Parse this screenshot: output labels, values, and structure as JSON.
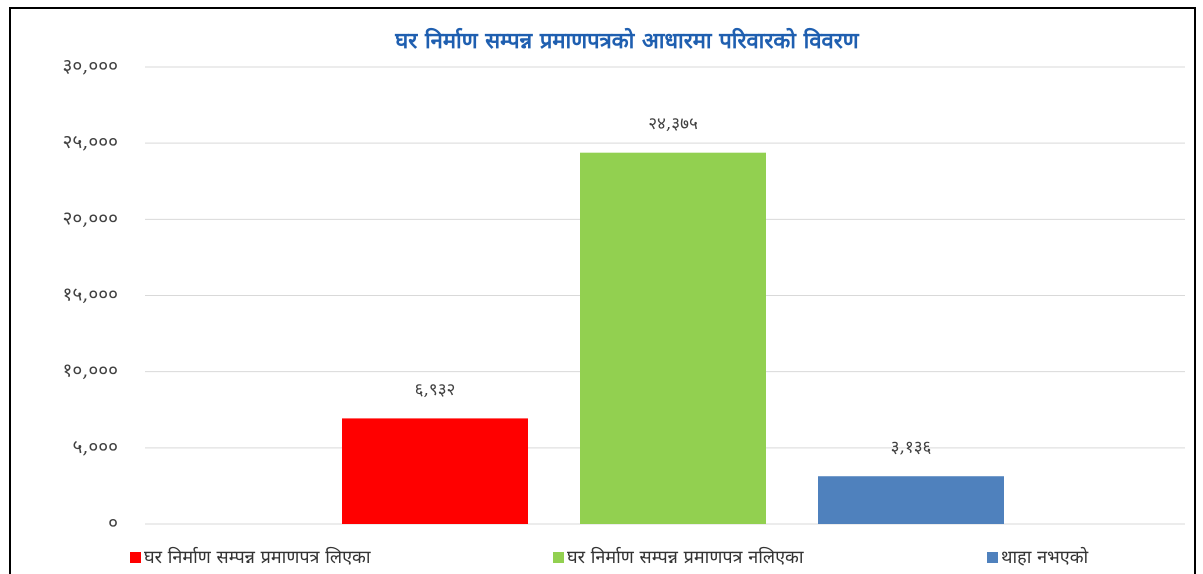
{
  "chart_data": {
    "type": "bar",
    "title": "घर निर्माण सम्पन्न प्रमाणपत्रको आधारमा परिवारको विवरण",
    "categories": [
      null
    ],
    "series": [
      {
        "name": "घर निर्माण सम्पन्न प्रमाणपत्र लिएका",
        "color": "#ff0000",
        "values": [
          6932
        ],
        "value_labels": [
          "६,९३२"
        ]
      },
      {
        "name": "घर निर्माण सम्पन्न प्रमाणपत्र नलिएका",
        "color": "#92d050",
        "values": [
          24375
        ],
        "value_labels": [
          "२४,३७५"
        ]
      },
      {
        "name": "थाहा नभएको",
        "color": "#4f81bd",
        "values": [
          3136
        ],
        "value_labels": [
          "३,१३६"
        ]
      }
    ],
    "ylim": [
      0,
      30000
    ],
    "yticks": [
      {
        "value": 0,
        "label": "०"
      },
      {
        "value": 5000,
        "label": "५,०००"
      },
      {
        "value": 10000,
        "label": "१०,०००"
      },
      {
        "value": 15000,
        "label": "१५,०००"
      },
      {
        "value": 20000,
        "label": "२०,०००"
      },
      {
        "value": 25000,
        "label": "२५,०००"
      },
      {
        "value": 30000,
        "label": "३०,०००"
      }
    ],
    "grid": true
  }
}
